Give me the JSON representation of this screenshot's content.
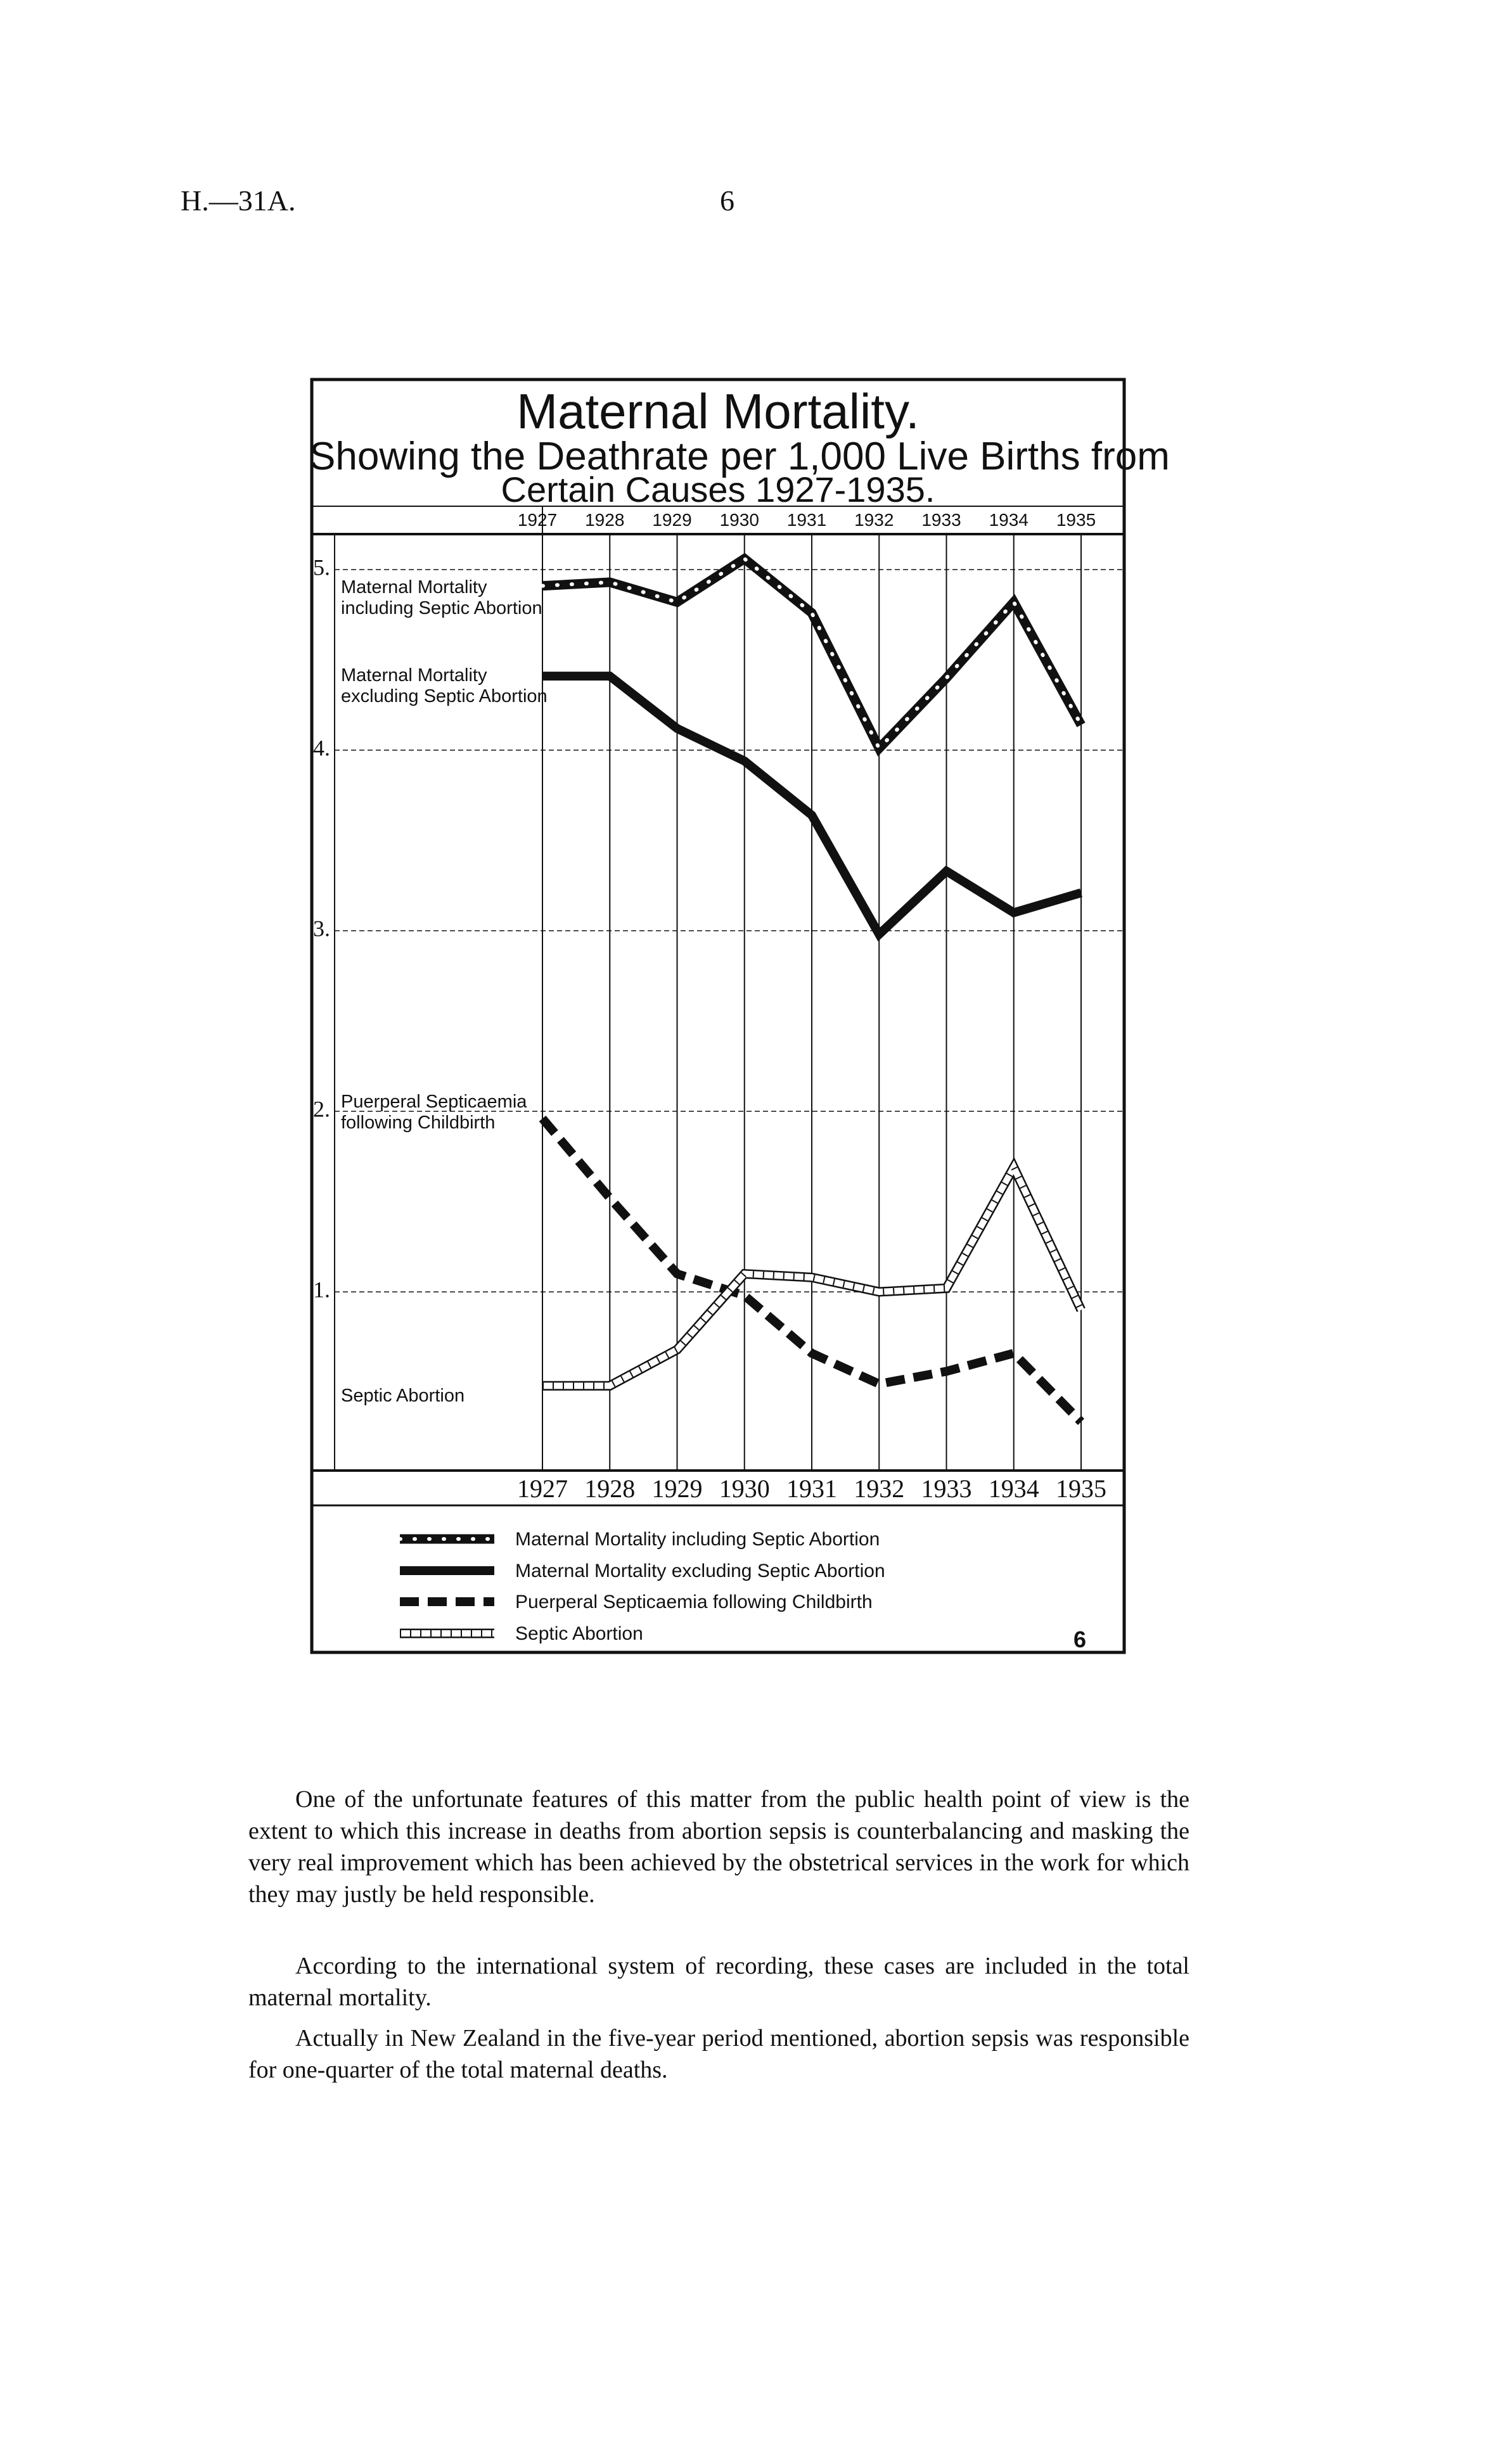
{
  "page_header": {
    "reference": "H.—31A.",
    "page_number": "6"
  },
  "chart_data": {
    "type": "line",
    "title": "Maternal Mortality.",
    "subtitle": [
      "Showing the Deathrate per 1,000 Live Births from",
      "Certain Causes 1927-1935."
    ],
    "x": [
      "1927",
      "1928",
      "1929",
      "1930",
      "1931",
      "1932",
      "1933",
      "1934",
      "1935"
    ],
    "y_ticks": [
      {
        "value": 5,
        "label": "5."
      },
      {
        "value": 4,
        "label": "4."
      },
      {
        "value": 3,
        "label": "3."
      },
      {
        "value": 2,
        "label": "2."
      },
      {
        "value": 1,
        "label": "1."
      }
    ],
    "ylim": [
      0,
      5.3
    ],
    "grid": true,
    "legend_placement": "bottom",
    "series": [
      {
        "name": "Maternal Mortality including Septic Abortion",
        "label": [
          "Maternal Mortality",
          "including Septic Abortion"
        ],
        "style": "dotted-band",
        "values": [
          4.91,
          4.93,
          4.82,
          5.06,
          4.76,
          4.01,
          4.4,
          4.82,
          4.14
        ]
      },
      {
        "name": "Maternal Mortality excluding Septic Abortion",
        "label": [
          "Maternal Mortality",
          "excluding Septic Abortion"
        ],
        "style": "solid-band",
        "values": [
          4.41,
          4.41,
          4.12,
          3.94,
          3.64,
          2.98,
          3.33,
          3.1,
          3.21
        ]
      },
      {
        "name": "Puerperal Septicaemia following Childbirth",
        "label": [
          "Puerperal Septicaemia",
          "following Childbirth"
        ],
        "style": "dashed-band",
        "values": [
          1.96,
          1.52,
          1.1,
          0.98,
          0.66,
          0.49,
          0.56,
          0.66,
          0.28
        ]
      },
      {
        "name": "Septic Abortion",
        "label": [
          "Septic Abortion"
        ],
        "style": "hollow-ticked-band",
        "values": [
          0.48,
          0.48,
          0.68,
          1.1,
          1.08,
          1.0,
          1.02,
          1.69,
          0.9
        ]
      }
    ],
    "colors": {
      "ink": "#111111",
      "paper": "#ffffff"
    },
    "figure_number": "6"
  },
  "body_text": [
    "One of the unfortunate features of this matter from the public health point of view is the extent to which this increase in deaths from abortion sepsis is counterbalancing and masking the very real improvement which has been achieved by the obstetrical services in the work for which they may justly be held responsible.",
    "According to the international system of recording, these cases are included in the total maternal mortality.",
    "Actually in New Zealand in the five-year period mentioned, abortion sepsis was responsible for one-quarter of the total maternal deaths."
  ]
}
